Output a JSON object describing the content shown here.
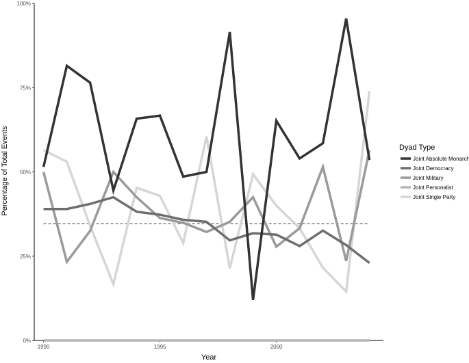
{
  "chart_data": {
    "type": "line",
    "title": "",
    "xlabel": "Year",
    "ylabel": "Percentage of Total Events",
    "x": [
      1990,
      1991,
      1992,
      1993,
      1994,
      1995,
      1996,
      1997,
      1998,
      1999,
      2000,
      2001,
      2002,
      2003,
      2004
    ],
    "xlim": [
      1989.6,
      2004.6
    ],
    "ylim": [
      0,
      100
    ],
    "x_ticks": [
      1990,
      1995,
      2000
    ],
    "x_tick_labels": [
      "1990",
      "1995",
      "2000"
    ],
    "y_ticks": [
      0,
      25,
      50,
      75,
      100
    ],
    "y_tick_labels": [
      "0%",
      "25%",
      "50%",
      "75%",
      "100%"
    ],
    "grid": false,
    "legend": {
      "title": "Dyad Type",
      "position": "right"
    },
    "reference_line": {
      "y": 34.6,
      "style": "dashed",
      "color": "#333333"
    },
    "series": [
      {
        "name": "Joint Absolute Monarchy",
        "color": "#333333",
        "values": [
          51.5,
          81.5,
          76.5,
          44.5,
          65.8,
          66.7,
          48.6,
          50.0,
          91.5,
          12.0,
          65.2,
          54.0,
          58.5,
          95.5,
          53.5
        ]
      },
      {
        "name": "Joint Democracy",
        "color": "#6e6e6e",
        "values": [
          39.0,
          39.0,
          40.5,
          42.5,
          38.2,
          37.3,
          35.8,
          35.2,
          29.7,
          31.8,
          31.4,
          28.0,
          32.6,
          28.3,
          23.0
        ]
      },
      {
        "name": "Joint Military",
        "color": "#9a9a9a",
        "values": [
          50.0,
          23.3,
          32.5,
          50.0,
          42.5,
          36.3,
          34.9,
          32.2,
          35.2,
          42.5,
          27.8,
          33.3,
          51.5,
          23.6,
          56.5
        ]
      },
      {
        "name": "Joint Personalist",
        "color": "#b5b5b5",
        "values": [
          0,
          0,
          0,
          0,
          0,
          0,
          0,
          0,
          0,
          0,
          0,
          0,
          0,
          0,
          0
        ]
      },
      {
        "name": "Joint Single Party",
        "color": "#d6d6d6",
        "values": [
          56.5,
          53.0,
          34.0,
          16.7,
          45.3,
          42.9,
          28.9,
          60.5,
          21.4,
          49.3,
          40.0,
          33.3,
          21.6,
          14.5,
          74.0
        ]
      }
    ]
  }
}
